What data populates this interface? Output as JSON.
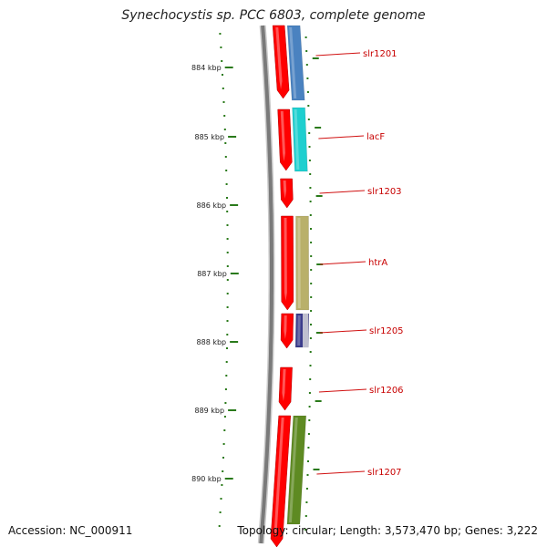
{
  "title": "Synechocystis sp. PCC 6803, complete genome",
  "footer": {
    "accession": "Accession: NC_000911",
    "summary": "Topology: circular; Length: 3,573,470 bp; Genes: 3,222"
  },
  "colors": {
    "backbone": "#7a7a7a",
    "forward_gene": "#ff0000",
    "tick": "#2a7a1a",
    "label": "#c80000",
    "leader": "#d01010"
  },
  "ticks": [
    {
      "label": "884 kbp"
    },
    {
      "label": "885 kbp"
    },
    {
      "label": "886 kbp"
    },
    {
      "label": "887 kbp"
    },
    {
      "label": "888 kbp"
    },
    {
      "label": "889 kbp"
    },
    {
      "label": "890 kbp"
    }
  ],
  "genes": [
    {
      "label": "slr1201",
      "color": "#4a82c0"
    },
    {
      "label": "lacF",
      "color": "#1ecfcf"
    },
    {
      "label": "slr1203",
      "color": ""
    },
    {
      "label": "htrA",
      "color": "#b9b06a"
    },
    {
      "label": "slr1205",
      "color": "#3b3c8c"
    },
    {
      "label": "slr1206",
      "color": ""
    },
    {
      "label": "slr1207",
      "color": "#5e8a22"
    }
  ]
}
